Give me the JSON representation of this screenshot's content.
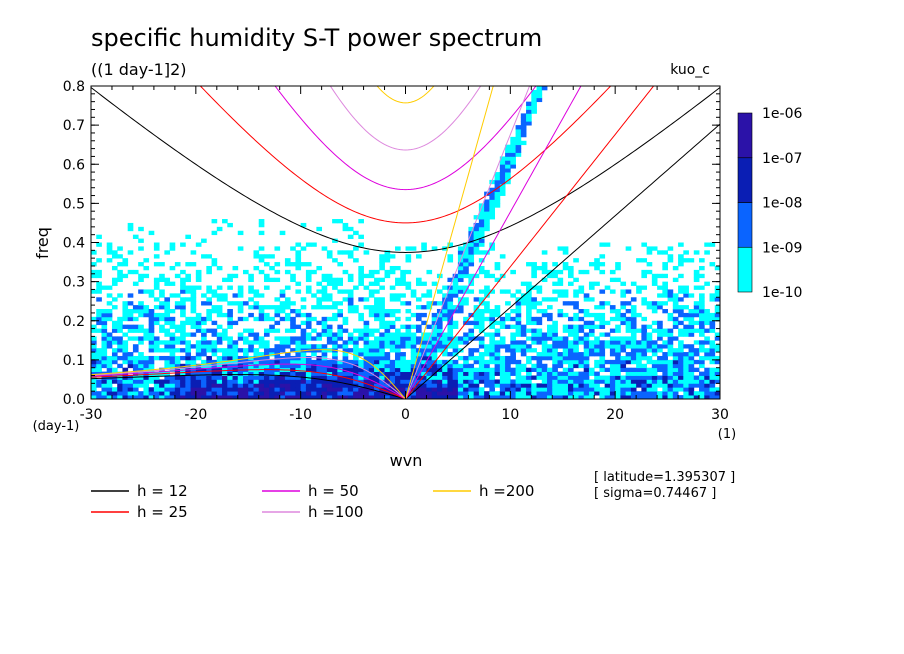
{
  "chart_data": {
    "type": "heatmap",
    "title": "specific humidity S-T power spectrum",
    "subtitle": "((1 day-1]2)",
    "run_label": "kuo_c",
    "xlabel": "wvn",
    "ylabel": "freq",
    "x_unit": "(1)",
    "y_unit": "(day-1)",
    "xlim": [
      -30,
      30
    ],
    "ylim": [
      0,
      0.8
    ],
    "xticks": [
      -30,
      -20,
      -10,
      0,
      10,
      20,
      30
    ],
    "yticks": [
      0.0,
      0.1,
      0.2,
      0.3,
      0.4,
      0.5,
      0.6,
      0.7,
      0.8
    ],
    "xtick_labels": [
      "-30",
      "-20",
      "-10",
      "0",
      "10",
      "20",
      "30"
    ],
    "ytick_labels": [
      "0.0",
      "0.1",
      "0.2",
      "0.3",
      "0.4",
      "0.5",
      "0.6",
      "0.7",
      "0.8"
    ],
    "colorbar": {
      "levels": [
        "1e-10",
        "1e-09",
        "1e-08",
        "1e-07",
        "1e-06"
      ],
      "colors": [
        "#00ffff",
        "#0a64ff",
        "#0a1eb4",
        "#2b12a8"
      ]
    },
    "dispersion_curves": [
      {
        "name": "h = 12",
        "equivalent_depth_m": 12,
        "color": "#000000"
      },
      {
        "name": "h = 25",
        "equivalent_depth_m": 25,
        "color": "#ff0000"
      },
      {
        "name": "h = 50",
        "equivalent_depth_m": 50,
        "color": "#dd00dd"
      },
      {
        "name": "h =100",
        "equivalent_depth_m": 100,
        "color": "#dd88dd"
      },
      {
        "name": "h =200",
        "equivalent_depth_m": 200,
        "color": "#ffcc00"
      }
    ],
    "annotations": [
      "[ latitude=1.395307 ]",
      "[ sigma=0.74467 ]"
    ]
  }
}
